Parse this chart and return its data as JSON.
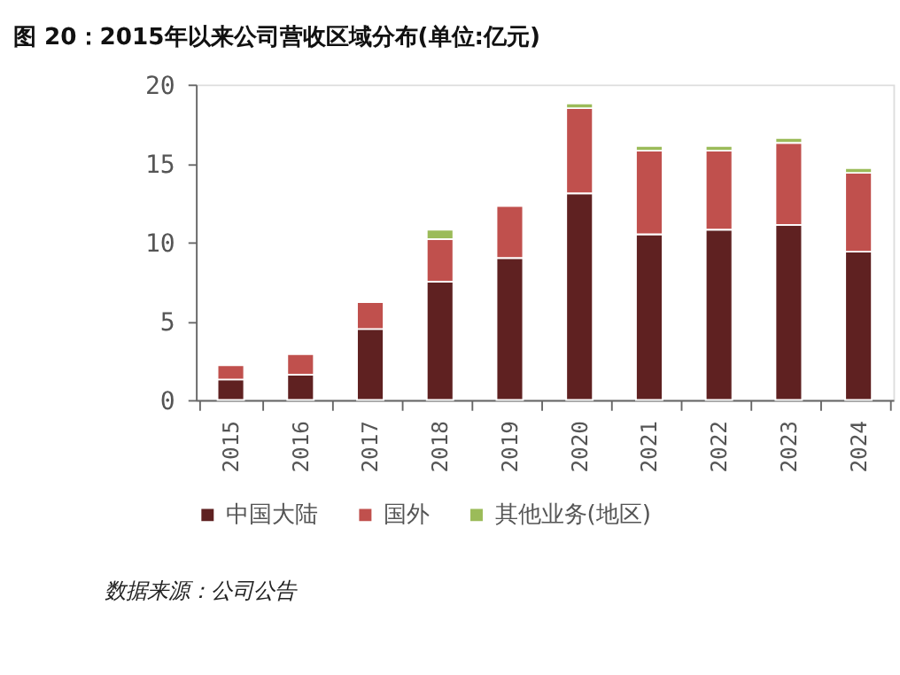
{
  "chart_data": {
    "type": "bar",
    "title": "图 20：2015年以来公司营收区域分布(单位:亿元)",
    "stacked": true,
    "categories": [
      "2015",
      "2016",
      "2017",
      "2018",
      "2019",
      "2020",
      "2021",
      "2022",
      "2023",
      "2024"
    ],
    "series": [
      {
        "name": "中国大陆",
        "color": "#5f2121",
        "values": [
          1.3,
          1.6,
          4.5,
          7.5,
          9.0,
          13.1,
          10.5,
          10.8,
          11.1,
          9.4
        ]
      },
      {
        "name": "国外",
        "color": "#c0504d",
        "values": [
          0.9,
          1.3,
          1.7,
          2.7,
          3.3,
          5.4,
          5.3,
          5.0,
          5.2,
          5.0
        ]
      },
      {
        "name": "其他业务(地区)",
        "color": "#9bbb59",
        "values": [
          null,
          null,
          null,
          0.6,
          null,
          0.3,
          0.3,
          0.3,
          0.3,
          0.3
        ]
      }
    ],
    "ylim": [
      0,
      20
    ],
    "yticks": [
      0,
      5,
      10,
      15,
      20
    ],
    "grid": false,
    "legend": "bottom",
    "annotations": [
      "数据来源：公司公告"
    ]
  }
}
